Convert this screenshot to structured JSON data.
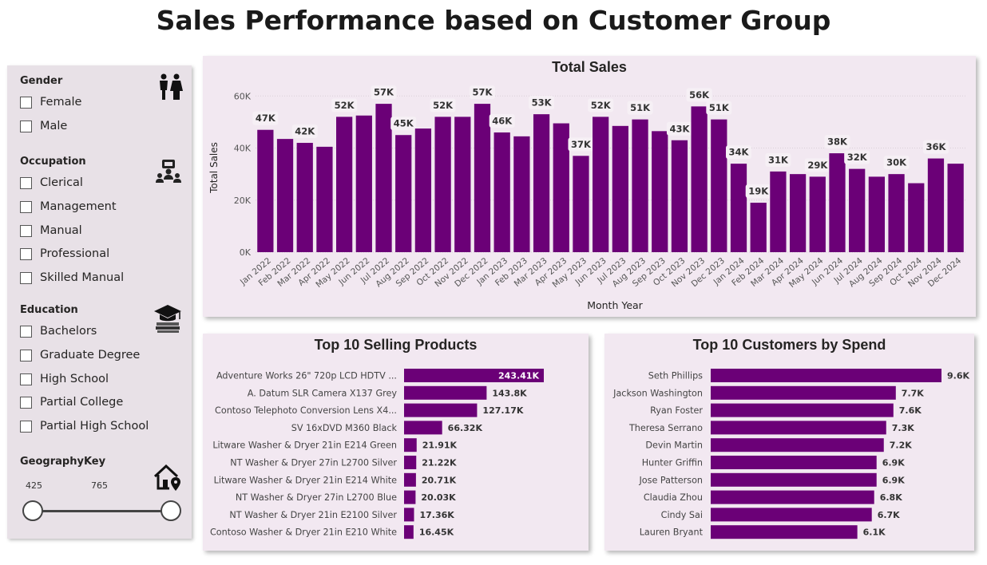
{
  "title": "Sales Performance based on Customer Group",
  "colors": {
    "bar": "#6b0077",
    "panel": "#e8e1e7",
    "card": "#f2e8f1",
    "label_bg": "#f6f0f5"
  },
  "slicers": {
    "gender": {
      "heading": "Gender",
      "icon": "people-icon",
      "options": [
        "Female",
        "Male"
      ]
    },
    "occupation": {
      "heading": "Occupation",
      "icon": "team-icon",
      "options": [
        "Clerical",
        "Management",
        "Manual",
        "Professional",
        "Skilled Manual"
      ]
    },
    "education": {
      "heading": "Education",
      "icon": "graduation-cap-icon",
      "options": [
        "Bachelors",
        "Graduate Degree",
        "High School",
        "Partial College",
        "Partial High School"
      ]
    },
    "geography": {
      "heading": "GeographyKey",
      "icon": "home-location-icon",
      "min": "425",
      "max": "765"
    }
  },
  "chart_data": [
    {
      "type": "bar",
      "title": "Total Sales",
      "xlabel": "Month Year",
      "ylabel": "Total Sales",
      "ylim": [
        0,
        65000
      ],
      "yticks": [
        "0K",
        "20K",
        "40K",
        "60K"
      ],
      "categories": [
        "Jan 2022",
        "Feb 2022",
        "Mar 2022",
        "Apr 2022",
        "May 2022",
        "Jun 2022",
        "Jul 2022",
        "Aug 2022",
        "Sep 2022",
        "Oct 2022",
        "Nov 2022",
        "Dec 2022",
        "Jan 2023",
        "Feb 2023",
        "Mar 2023",
        "Apr 2023",
        "May 2023",
        "Jun 2023",
        "Jul 2023",
        "Aug 2023",
        "Sep 2023",
        "Oct 2023",
        "Nov 2023",
        "Dec 2023",
        "Jan 2024",
        "Feb 2024",
        "Mar 2024",
        "Apr 2024",
        "May 2024",
        "Jun 2024",
        "Jul 2024",
        "Aug 2024",
        "Sep 2024",
        "Oct 2024",
        "Nov 2024",
        "Dec 2024"
      ],
      "values": [
        47000,
        43500,
        42000,
        40500,
        52000,
        52500,
        57000,
        45000,
        47500,
        52000,
        52000,
        57000,
        46000,
        44500,
        53000,
        49500,
        37000,
        52000,
        48500,
        51000,
        46500,
        43000,
        56000,
        51000,
        34000,
        19000,
        31000,
        30000,
        29000,
        38000,
        32000,
        29000,
        30000,
        26500,
        36000,
        34000
      ],
      "labels": [
        "47K",
        "",
        "42K",
        "",
        "52K",
        "",
        "57K",
        "45K",
        "",
        "52K",
        "",
        "57K",
        "46K",
        "",
        "53K",
        "",
        "37K",
        "52K",
        "",
        "51K",
        "",
        "43K",
        "56K",
        "51K",
        "34K",
        "19K",
        "31K",
        "",
        "29K",
        "38K",
        "32K",
        "",
        "30K",
        "",
        "36K",
        ""
      ],
      "grid": true
    },
    {
      "type": "bar",
      "orientation": "horizontal",
      "title": "Top 10 Selling Products",
      "categories": [
        "Adventure Works 26\" 720p LCD HDTV ...",
        "A. Datum SLR Camera X137 Grey",
        "Contoso Telephoto Conversion Lens X4...",
        "SV 16xDVD M360 Black",
        "Litware Washer & Dryer 21in E214 Green",
        "NT Washer & Dryer 27in L2700 Silver",
        "Litware Washer & Dryer 21in E214 White",
        "NT Washer & Dryer 27in L2700 Blue",
        "NT Washer & Dryer 21in E2100 Silver",
        "Contoso Washer & Dryer 21in E210 White"
      ],
      "values": [
        243410,
        143800,
        127170,
        66320,
        21910,
        21220,
        20710,
        20030,
        17360,
        16450
      ],
      "labels": [
        "243.41K",
        "143.8K",
        "127.17K",
        "66.32K",
        "21.91K",
        "21.22K",
        "20.71K",
        "20.03K",
        "17.36K",
        "16.45K"
      ]
    },
    {
      "type": "bar",
      "orientation": "horizontal",
      "title": "Top 10 Customers by Spend",
      "categories": [
        "Seth Phillips",
        "Jackson Washington",
        "Ryan Foster",
        "Theresa Serrano",
        "Devin Martin",
        "Hunter Griffin",
        "Jose Patterson",
        "Claudia Zhou",
        "Cindy Sai",
        "Lauren Bryant"
      ],
      "values": [
        9600,
        7700,
        7600,
        7300,
        7200,
        6900,
        6900,
        6800,
        6700,
        6100
      ],
      "labels": [
        "9.6K",
        "7.7K",
        "7.6K",
        "7.3K",
        "7.2K",
        "6.9K",
        "6.9K",
        "6.8K",
        "6.7K",
        "6.1K"
      ]
    }
  ]
}
